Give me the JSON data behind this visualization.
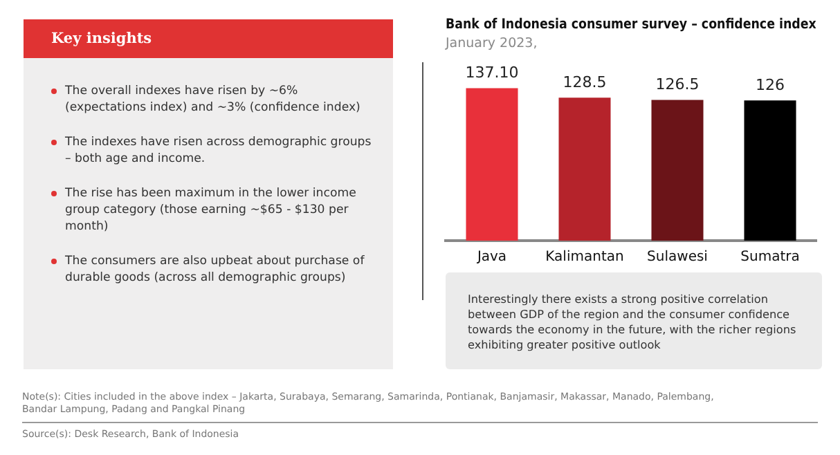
{
  "chart_data": {
    "type": "bar",
    "title": "Bank of Indonesia consumer survey – confidence index",
    "subtitle": "January 2023,",
    "categories": [
      "Java",
      "Kalimantan",
      "Sulawesi",
      "Sumatra"
    ],
    "values": [
      137.1,
      128.5,
      126.5,
      126
    ],
    "value_labels": [
      "137.10",
      "128.5",
      "126.5",
      "126"
    ],
    "colors": [
      "#e8303a",
      "#b5232b",
      "#6b1418",
      "#000000"
    ],
    "tick_labels": "x",
    "grid": false,
    "legend": false,
    "annotations": [
      "Key insights",
      "The overall indexes have risen by ~6% (expectations index) and ~3% (confidence index)",
      "The indexes have risen across demographic groups – both age and income.",
      "The rise has been maximum in the lower income group category (those earning ~$65 - $130 per month)",
      "The consumers are also upbeat about purchase of durable goods (across all demographic groups)",
      "Interestingly there exists a strong positive correlation between GDP of the region and the consumer confidence towards the economy in the future, with the richer regions exhibiting greater positive outlook",
      "Note(s): Cities included in the above index – Jakarta, Surabaya, Semarang, Samarinda, Pontianak, Banjamasir, Makassar, Manado, Palembang, Bandar Lampung, Padang and Pangkal Pinang",
      "Source(s): Desk Research, Bank of Indonesia"
    ]
  }
}
